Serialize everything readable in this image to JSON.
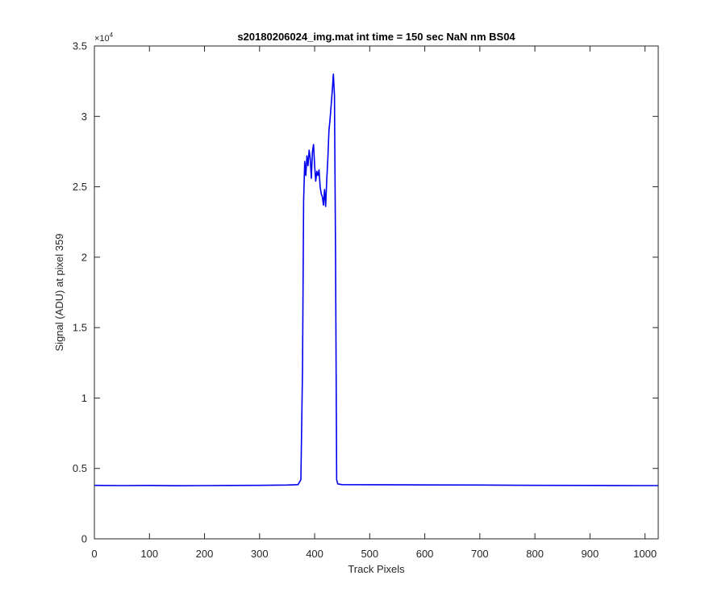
{
  "figure": {
    "background": "#ffffff"
  },
  "chart_data": {
    "type": "line",
    "title": "s20180206024_img.mat int time = 150 sec  NaN nm BS04",
    "xlabel": "Track Pixels",
    "ylabel": "Signal (ADU) at pixel 359",
    "y_exponent_label": "×10",
    "y_exponent_power": "4",
    "xlim": [
      0,
      1024
    ],
    "ylim": [
      0,
      35000
    ],
    "xticks": [
      0,
      100,
      200,
      300,
      400,
      500,
      600,
      700,
      800,
      900,
      1000
    ],
    "xtick_labels": [
      "0",
      "100",
      "200",
      "300",
      "400",
      "500",
      "600",
      "700",
      "800",
      "900",
      "1000"
    ],
    "yticks": [
      0,
      5000,
      10000,
      15000,
      20000,
      25000,
      30000,
      35000
    ],
    "ytick_labels": [
      "0",
      "0.5",
      "1",
      "1.5",
      "2",
      "2.5",
      "3",
      "3.5"
    ],
    "grid": false,
    "series": [
      {
        "color": "#0000ee",
        "x": [
          0,
          50,
          100,
          150,
          200,
          250,
          300,
          350,
          370,
          375,
          378,
          380,
          382,
          384,
          386,
          388,
          390,
          392,
          394,
          396,
          398,
          400,
          402,
          404,
          406,
          408,
          410,
          412,
          414,
          416,
          418,
          420,
          422,
          424,
          426,
          428,
          430,
          432,
          434,
          436,
          438,
          440,
          442,
          450,
          500,
          600,
          700,
          800,
          900,
          1000,
          1024
        ],
        "y": [
          3800,
          3780,
          3790,
          3770,
          3780,
          3790,
          3800,
          3820,
          3850,
          4200,
          12000,
          24000,
          26800,
          25800,
          27200,
          26500,
          27600,
          27000,
          25600,
          27500,
          28000,
          26500,
          25400,
          26100,
          25800,
          26200,
          25000,
          24500,
          24300,
          23700,
          24800,
          23600,
          25500,
          27000,
          29000,
          29800,
          30800,
          31800,
          33000,
          31500,
          20000,
          4200,
          3900,
          3850,
          3840,
          3830,
          3820,
          3800,
          3790,
          3780,
          3780
        ]
      }
    ]
  }
}
